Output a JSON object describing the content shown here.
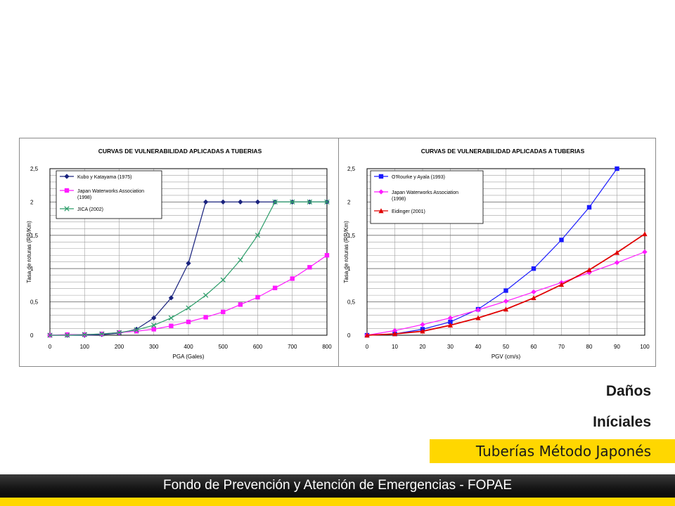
{
  "slide": {
    "heading_line1": "Daños",
    "heading_line2": "Iníciales",
    "subtitle": "Tuberías Método Japonés",
    "footer": "Fondo de Prevención y Atención de Emergencias - FOPAE",
    "colors": {
      "accent_yellow": "#ffd700",
      "footer_black": "#111111"
    }
  },
  "chart_data": [
    {
      "type": "line",
      "title": "CURVAS DE VULNERABILIDAD APLICADAS A TUBERIAS",
      "xlabel": "PGA (Gales)",
      "ylabel": "Tasa de roturas (RR/Km)",
      "xlim": [
        0,
        800
      ],
      "ylim": [
        0,
        2.5
      ],
      "xticks": [
        0,
        100,
        200,
        300,
        400,
        500,
        600,
        700,
        800
      ],
      "xtick_labels": [
        "0",
        "100",
        "200",
        "300",
        "400",
        "500",
        "600",
        "700",
        "800"
      ],
      "yticks": [
        0,
        0.5,
        1,
        1.5,
        2,
        2.5
      ],
      "ytick_labels": [
        "0",
        "0,5",
        "1",
        "1,5",
        "2",
        "2,5"
      ],
      "grid": true,
      "legend_position": "top-left",
      "series": [
        {
          "name": "Kubo y Katayama (1975)",
          "color": "#1a237e",
          "marker": "diamond",
          "x": [
            0,
            50,
            100,
            150,
            200,
            250,
            300,
            350,
            400,
            450,
            500,
            550,
            600,
            650,
            700,
            750,
            800
          ],
          "y": [
            0,
            0,
            0,
            0.01,
            0.03,
            0.09,
            0.26,
            0.56,
            1.08,
            2.0,
            2.0,
            2.0,
            2.0,
            2.0,
            2.0,
            2.0,
            2.0
          ]
        },
        {
          "name": "Japan Waterworks Association (1998)",
          "color": "#ff1aff",
          "marker": "square",
          "x": [
            0,
            50,
            100,
            150,
            200,
            250,
            300,
            350,
            400,
            450,
            500,
            550,
            600,
            650,
            700,
            750,
            800
          ],
          "y": [
            0,
            0.01,
            0.01,
            0.02,
            0.04,
            0.06,
            0.09,
            0.14,
            0.2,
            0.27,
            0.35,
            0.46,
            0.57,
            0.71,
            0.85,
            1.02,
            1.2
          ]
        },
        {
          "name": "JICA (2002)",
          "color": "#2e9e6b",
          "marker": "x",
          "x": [
            0,
            50,
            100,
            150,
            200,
            250,
            300,
            350,
            400,
            450,
            500,
            550,
            600,
            650,
            700,
            750,
            800
          ],
          "y": [
            0,
            0,
            0.01,
            0.02,
            0.04,
            0.08,
            0.15,
            0.26,
            0.41,
            0.6,
            0.83,
            1.13,
            1.5,
            2.0,
            2.0,
            2.0,
            2.0
          ]
        }
      ]
    },
    {
      "type": "line",
      "title": "CURVAS DE VULNERABILIDAD APLICADAS A TUBERIAS",
      "xlabel": "PGV (cm/s)",
      "ylabel": "Tasa de roturas (RR/Km)",
      "xlim": [
        0,
        100
      ],
      "ylim": [
        0,
        2.5
      ],
      "xticks": [
        0,
        10,
        20,
        30,
        40,
        50,
        60,
        70,
        80,
        90,
        100
      ],
      "xtick_labels": [
        "0",
        "10",
        "20",
        "30",
        "40",
        "50",
        "60",
        "70",
        "80",
        "90",
        "100"
      ],
      "yticks": [
        0,
        0.5,
        1,
        1.5,
        2,
        2.5
      ],
      "ytick_labels": [
        "0",
        "0,5",
        "1",
        "1,5",
        "2",
        "2,5"
      ],
      "grid": true,
      "legend_position": "top-left",
      "series": [
        {
          "name": "O'Rourke y Ayala (1993)",
          "color": "#1a1aff",
          "marker": "square",
          "x": [
            0,
            10,
            20,
            30,
            40,
            50,
            60,
            70,
            80,
            90
          ],
          "y": [
            0,
            0.02,
            0.09,
            0.2,
            0.39,
            0.67,
            1.0,
            1.43,
            1.92,
            2.5
          ]
        },
        {
          "name": "Japan Waterworks Association (1998)",
          "color": "#ff1aff",
          "marker": "diamond",
          "x": [
            0,
            10,
            20,
            30,
            40,
            50,
            60,
            70,
            80,
            90,
            100
          ],
          "y": [
            0,
            0.07,
            0.16,
            0.26,
            0.38,
            0.51,
            0.65,
            0.79,
            0.94,
            1.09,
            1.25
          ]
        },
        {
          "name": "Eidinger (2001)",
          "color": "#e00000",
          "marker": "triangle",
          "x": [
            0,
            10,
            20,
            30,
            40,
            50,
            60,
            70,
            80,
            90,
            100
          ],
          "y": [
            0,
            0.02,
            0.06,
            0.15,
            0.26,
            0.39,
            0.56,
            0.76,
            0.98,
            1.24,
            1.52
          ]
        }
      ]
    }
  ]
}
